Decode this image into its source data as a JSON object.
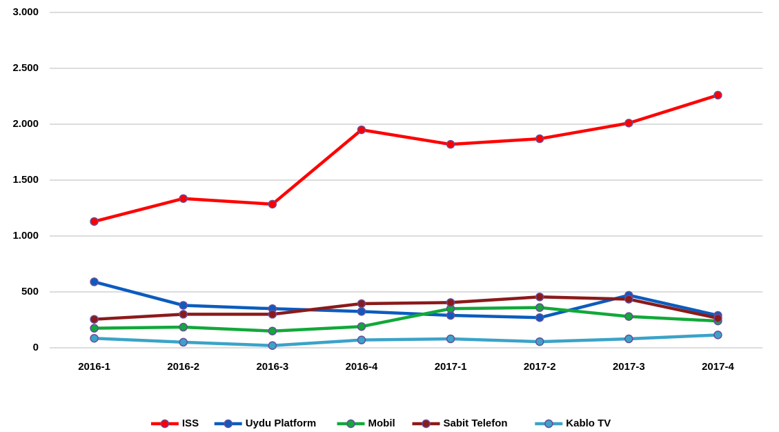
{
  "chart_data": {
    "type": "line",
    "categories": [
      "2016-1",
      "2016-2",
      "2016-3",
      "2016-4",
      "2017-1",
      "2017-2",
      "2017-3",
      "2017-4"
    ],
    "series": [
      {
        "name": "ISS",
        "color": "#ff0000",
        "values": [
          1130,
          1335,
          1285,
          1950,
          1820,
          1870,
          2010,
          2260
        ]
      },
      {
        "name": "Uydu Platform",
        "color": "#0b5cbe",
        "values": [
          590,
          380,
          350,
          325,
          290,
          270,
          470,
          290
        ]
      },
      {
        "name": "Mobil",
        "color": "#12a83a",
        "values": [
          175,
          185,
          150,
          190,
          350,
          360,
          280,
          240
        ]
      },
      {
        "name": "Sabit Telefon",
        "color": "#8b1a1a",
        "values": [
          255,
          300,
          300,
          395,
          405,
          455,
          435,
          265
        ]
      },
      {
        "name": "Kablo TV",
        "color": "#3ba3c8",
        "values": [
          85,
          50,
          20,
          70,
          80,
          55,
          80,
          115
        ]
      }
    ],
    "ylim": [
      0,
      3000
    ],
    "yticks": [
      0,
      500,
      {
        "value": 1000,
        "label": "1.000"
      },
      {
        "value": 1500,
        "label": "1.500"
      },
      {
        "value": 2000,
        "label": "2.000"
      },
      {
        "value": 2500,
        "label": "2.500"
      },
      {
        "value": 3000,
        "label": "3.000"
      }
    ],
    "grid": true,
    "legend": "bottom"
  }
}
